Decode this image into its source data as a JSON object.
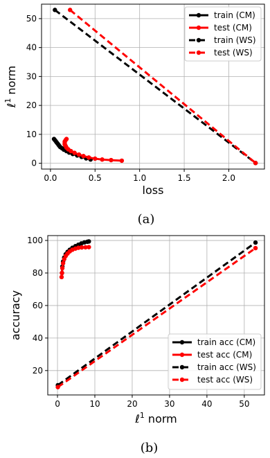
{
  "chart_data": [
    {
      "type": "line",
      "xlabel": "loss",
      "ylabel_prefix": "ℓ",
      "ylabel_sup": "1",
      "ylabel_suffix": " norm",
      "xlim": [
        -0.1,
        2.4
      ],
      "ylim": [
        -2,
        55
      ],
      "xticks": [
        0.0,
        0.5,
        1.0,
        1.5,
        2.0
      ],
      "xtick_labels": [
        "0.0",
        "0.5",
        "1.0",
        "1.5",
        "2.0"
      ],
      "yticks": [
        0,
        10,
        20,
        30,
        40,
        50
      ],
      "ytick_labels": [
        "0",
        "10",
        "20",
        "30",
        "40",
        "50"
      ],
      "grid": true,
      "legend_position": "top-right",
      "caption": "(a)",
      "series": [
        {
          "name": "train (CM)",
          "color": "#000000",
          "style": "solid",
          "points": [
            [
              0.04,
              8.4
            ],
            [
              0.05,
              8.0
            ],
            [
              0.06,
              7.6
            ],
            [
              0.07,
              7.2
            ],
            [
              0.08,
              6.8
            ],
            [
              0.09,
              6.4
            ],
            [
              0.1,
              6.0
            ],
            [
              0.11,
              5.6
            ],
            [
              0.13,
              5.2
            ],
            [
              0.15,
              4.7
            ],
            [
              0.18,
              4.2
            ],
            [
              0.21,
              3.7
            ],
            [
              0.25,
              3.2
            ],
            [
              0.3,
              2.7
            ],
            [
              0.35,
              2.2
            ],
            [
              0.4,
              1.7
            ],
            [
              0.45,
              1.3
            ]
          ]
        },
        {
          "name": "test (CM)",
          "color": "#ff0000",
          "style": "solid",
          "points": [
            [
              0.18,
              8.4
            ],
            [
              0.17,
              8.0
            ],
            [
              0.16,
              7.5
            ],
            [
              0.16,
              7.0
            ],
            [
              0.16,
              6.5
            ],
            [
              0.17,
              6.0
            ],
            [
              0.18,
              5.4
            ],
            [
              0.2,
              4.8
            ],
            [
              0.23,
              4.2
            ],
            [
              0.27,
              3.6
            ],
            [
              0.32,
              3.0
            ],
            [
              0.37,
              2.5
            ],
            [
              0.43,
              2.0
            ],
            [
              0.5,
              1.6
            ],
            [
              0.58,
              1.3
            ],
            [
              0.68,
              1.1
            ],
            [
              0.8,
              0.9
            ]
          ]
        },
        {
          "name": "train (WS)",
          "color": "#000000",
          "style": "dashed",
          "points": [
            [
              0.05,
              53.0
            ],
            [
              2.3,
              0.1
            ]
          ]
        },
        {
          "name": "test (WS)",
          "color": "#ff0000",
          "style": "dashed",
          "points": [
            [
              0.22,
              53.0
            ],
            [
              2.3,
              0.1
            ]
          ]
        }
      ]
    },
    {
      "type": "line",
      "xlabel_prefix": "ℓ",
      "xlabel_sup": "1",
      "xlabel_suffix": " norm",
      "ylabel": "accuracy",
      "xlim": [
        -2.6,
        55.4
      ],
      "ylim": [
        5,
        103
      ],
      "xticks": [
        0,
        10,
        20,
        30,
        40,
        50
      ],
      "xtick_labels": [
        "0",
        "10",
        "20",
        "30",
        "40",
        "50"
      ],
      "yticks": [
        20,
        40,
        60,
        80,
        100
      ],
      "ytick_labels": [
        "20",
        "40",
        "60",
        "80",
        "100"
      ],
      "grid": true,
      "legend_position": "bottom-right",
      "caption": "(b)",
      "series": [
        {
          "name": "train acc (CM)",
          "color": "#000000",
          "style": "solid",
          "points": [
            [
              1.2,
              80.0
            ],
            [
              1.3,
              84.0
            ],
            [
              1.5,
              87.0
            ],
            [
              1.8,
              89.5
            ],
            [
              2.2,
              91.5
            ],
            [
              2.7,
              93.0
            ],
            [
              3.3,
              94.3
            ],
            [
              4.0,
              95.5
            ],
            [
              4.8,
              96.5
            ],
            [
              5.6,
              97.4
            ],
            [
              6.4,
              98.2
            ],
            [
              7.2,
              98.8
            ],
            [
              8.0,
              99.2
            ],
            [
              8.4,
              99.4
            ]
          ]
        },
        {
          "name": "test acc (CM)",
          "color": "#ff0000",
          "style": "solid",
          "points": [
            [
              1.1,
              77.5
            ],
            [
              1.2,
              80.0
            ],
            [
              1.3,
              83.0
            ],
            [
              1.5,
              86.0
            ],
            [
              1.8,
              88.5
            ],
            [
              2.2,
              90.5
            ],
            [
              2.7,
              92.0
            ],
            [
              3.3,
              93.3
            ],
            [
              4.0,
              94.3
            ],
            [
              4.8,
              95.0
            ],
            [
              5.6,
              95.5
            ],
            [
              6.5,
              95.7
            ],
            [
              7.5,
              95.8
            ],
            [
              8.4,
              95.9
            ]
          ]
        },
        {
          "name": "train acc (WS)",
          "color": "#000000",
          "style": "dashed",
          "points": [
            [
              0.1,
              11.0
            ],
            [
              53.0,
              98.7
            ]
          ]
        },
        {
          "name": "test acc (WS)",
          "color": "#ff0000",
          "style": "dashed",
          "points": [
            [
              0.1,
              9.8
            ],
            [
              53.0,
              95.3
            ]
          ]
        }
      ]
    }
  ]
}
